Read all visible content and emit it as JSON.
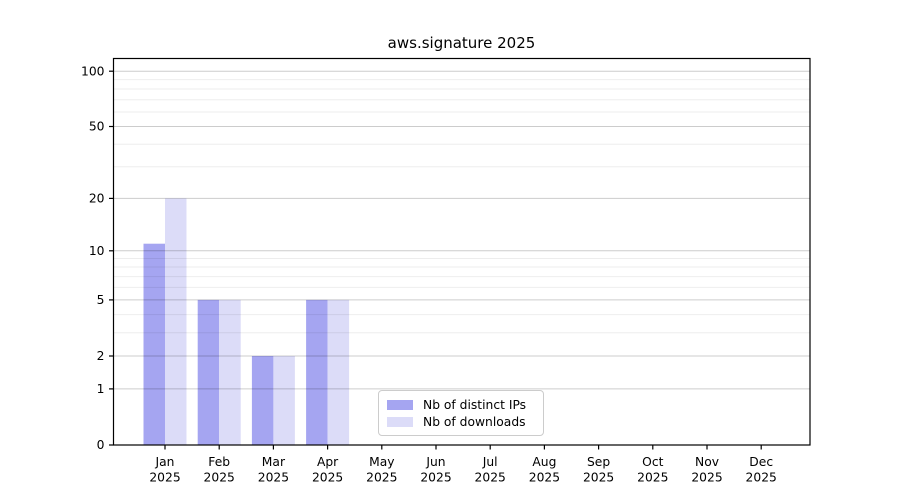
{
  "title": "aws.signature 2025",
  "chart_data": {
    "type": "bar",
    "title": "aws.signature 2025",
    "categories": [
      "Jan 2025",
      "Feb 2025",
      "Mar 2025",
      "Apr 2025",
      "May 2025",
      "Jun 2025",
      "Jul 2025",
      "Aug 2025",
      "Sep 2025",
      "Oct 2025",
      "Nov 2025",
      "Dec 2025"
    ],
    "series": [
      {
        "name": "Nb of distinct IPs",
        "color": "#a5a5f1",
        "values": [
          11,
          5,
          2,
          5,
          0,
          0,
          0,
          0,
          0,
          0,
          0,
          0
        ]
      },
      {
        "name": "Nb of downloads",
        "color": "#dcdcf8",
        "values": [
          20,
          5,
          2,
          5,
          0,
          0,
          0,
          0,
          0,
          0,
          0,
          0
        ]
      }
    ],
    "xlabel": "",
    "ylabel": "",
    "yscale": "log1p",
    "yticks": [
      0,
      1,
      2,
      5,
      10,
      20,
      50,
      100
    ],
    "ytick_labels": [
      "0",
      "1",
      "2",
      "5",
      "10",
      "20",
      "50",
      "100"
    ],
    "yticks_minor": [
      3,
      4,
      6,
      7,
      8,
      9,
      30,
      40,
      60,
      70,
      80,
      90
    ],
    "ylim": [
      0,
      117
    ],
    "grid": true,
    "legend_position": "lower center"
  },
  "colors": {
    "grid_major": "rgba(0,0,0,0.20)",
    "grid_minor": "rgba(0,0,0,0.07)",
    "spine": "#000000"
  }
}
